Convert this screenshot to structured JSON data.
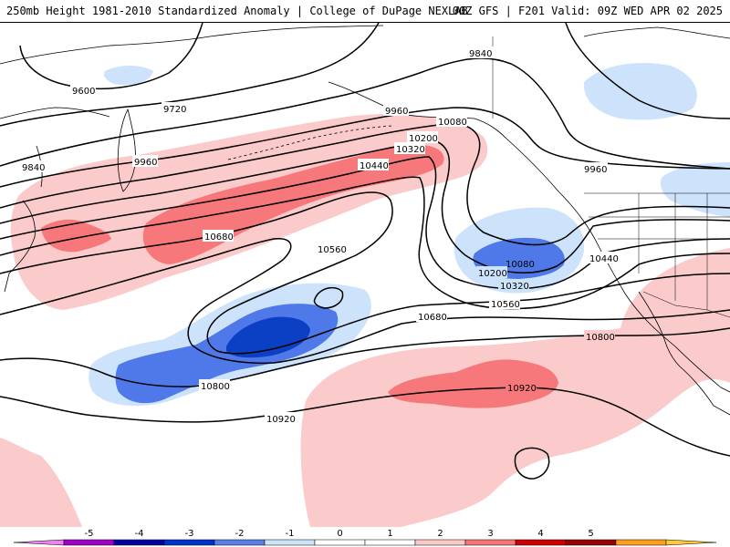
{
  "header": {
    "title_left": "250mb Height 1981-2010 Standardized Anomaly | College of DuPage NEXLAB",
    "title_right": "00Z GFS | F201 Valid: 09Z WED APR 02 2025"
  },
  "contour_labels": [
    {
      "text": "9840"
    },
    {
      "text": "9600"
    },
    {
      "text": "9720"
    },
    {
      "text": "9960"
    },
    {
      "text": "10080"
    },
    {
      "text": "10200"
    },
    {
      "text": "10320"
    },
    {
      "text": "10440"
    },
    {
      "text": "9840"
    },
    {
      "text": "9960"
    },
    {
      "text": "9960"
    },
    {
      "text": "10680"
    },
    {
      "text": "10560"
    },
    {
      "text": "10080"
    },
    {
      "text": "10200"
    },
    {
      "text": "10320"
    },
    {
      "text": "10440"
    },
    {
      "text": "10560"
    },
    {
      "text": "10680"
    },
    {
      "text": "10800"
    },
    {
      "text": "10800"
    },
    {
      "text": "10920"
    },
    {
      "text": "10920"
    }
  ],
  "legend": {
    "bins": [
      {
        "color": "#ee82ee"
      },
      {
        "color": "#9f00c5"
      },
      {
        "color": "#0000a0"
      },
      {
        "color": "#0033cc"
      },
      {
        "color": "#5a7fe6"
      },
      {
        "color": "#cbe4fa"
      },
      {
        "color": "#ffffff"
      },
      {
        "color": "#ffffff"
      },
      {
        "color": "#fcc8c8"
      },
      {
        "color": "#f87474"
      },
      {
        "color": "#cc0000"
      },
      {
        "color": "#990000"
      },
      {
        "color": "#ff9f1c"
      },
      {
        "color": "#ffcc33"
      }
    ],
    "ticks": [
      "-5",
      "-4",
      "-3",
      "-2",
      "-1",
      "0",
      "1",
      "2",
      "3",
      "4",
      "5"
    ]
  },
  "colors": {
    "pos1": "#fbcaca",
    "pos2": "#f6787a",
    "neg1": "#cce3fb",
    "neg2": "#4f79e8",
    "neg3": "#0b3fc4"
  }
}
